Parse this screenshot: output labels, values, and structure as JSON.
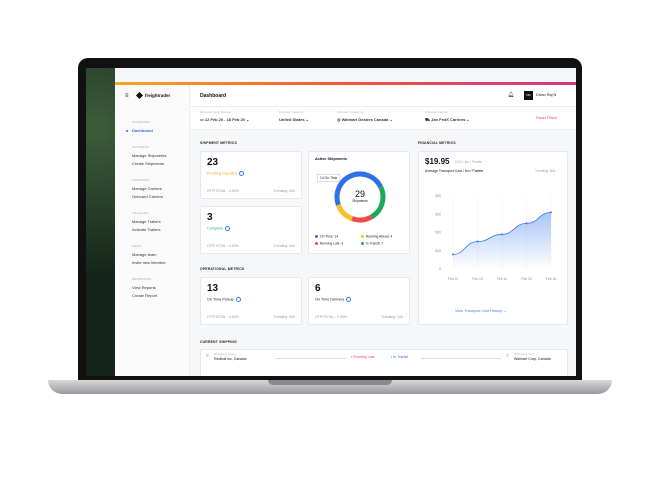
{
  "brand": "freightrader",
  "header": {
    "title": "Dashboard",
    "user_initials": "DR",
    "user_name": "Divan Raj N"
  },
  "sidebar": [
    {
      "label": "OVERVIEW",
      "items": [
        "Dashboard"
      ]
    },
    {
      "label": "SHIPMENT",
      "items": [
        "Manage Shipments",
        "Create Shipments"
      ]
    },
    {
      "label": "CARRIERS",
      "items": [
        "Manage Carriers",
        "Onboard Carriers"
      ]
    },
    {
      "label": "TRAILERS",
      "items": [
        "Manage Trailers",
        "Activate Trailers"
      ]
    },
    {
      "label": "TEAM",
      "items": [
        "Manage team",
        "Invite new Member"
      ]
    },
    {
      "label": "REPORTING",
      "items": [
        "View Reports",
        "Create Report"
      ]
    }
  ],
  "filters": {
    "date": {
      "label": "Choose Date Range",
      "value": "12 Feb 20 - 18 Feb 20"
    },
    "country": {
      "label": "Choose Country",
      "value": "United States"
    },
    "customer": {
      "label": "Choose Customer",
      "value": "Walmart Dealers Canada"
    },
    "carrier": {
      "label": "Choose Carrier",
      "value": "Jan FedX Carriers"
    },
    "reset": "Reset Filters"
  },
  "shipment_metrics": {
    "title": "SHIPMENT METRICS",
    "cards": [
      {
        "value": "23",
        "label": "Pending Dispatch",
        "color": "#f5a623",
        "otp": "OTP/TOTAL : 0.00%",
        "trend": "Trending: N/A"
      },
      {
        "value": "3",
        "label": "Complete",
        "color": "#27ae60",
        "otp": "OTP/TOTAL : 0.00%",
        "trend": "Trending: N/A"
      }
    ]
  },
  "active": {
    "title": "Active Shipments",
    "tooltip": "14 On-Time",
    "total": "29",
    "total_label": "Shipments",
    "legend": [
      {
        "label": "On-Time: 14",
        "value": 14,
        "color": "#2f6fe8"
      },
      {
        "label": "Running Ahead: 4",
        "value": 4,
        "color": "#f6c026"
      },
      {
        "label": "Running Late: 4",
        "value": 4,
        "color": "#ef4b4b"
      },
      {
        "label": "In Transit: 7",
        "value": 7,
        "color": "#1fa85a"
      }
    ]
  },
  "operational": {
    "title": "OPERATIONAL METRICS",
    "cards": [
      {
        "value": "13",
        "label": "On Time Pickup",
        "otp": "OTP/TOTAL : 0.00%",
        "trend": "Trending: N/A"
      },
      {
        "value": "6",
        "label": "On Time Delivery",
        "otp": "OTP/TOTAL : 0.00%",
        "trend": "Trending: N/A"
      }
    ]
  },
  "financial": {
    "title": "FINANCIAL METRICS",
    "price": "$19.95",
    "unit": "USD / km / Palette",
    "subtitle": "Average Transport Cost / km / Palette",
    "trend": "Trending: N/A",
    "link": "View Transport Cost History"
  },
  "chart_data": {
    "type": "area",
    "x": [
      "Feb 12",
      "Feb 13",
      "Feb 14",
      "Feb 15",
      "Feb 16"
    ],
    "values": [
      8,
      15,
      19,
      25,
      31
    ],
    "ylim": [
      0,
      40
    ],
    "yticks": [
      "0",
      "$10",
      "$20",
      "$30",
      "$40"
    ],
    "grid": "vertical",
    "color": "#3b7df0"
  },
  "current": {
    "title": "CURRENT SHIPPING",
    "from_label": "Shipping From",
    "from": "Redbull inc, Canada",
    "status_late": "Running Late",
    "status_transit": "In Transit",
    "to_label": "Shipping To",
    "to": "Walmart Corp, Canada"
  }
}
